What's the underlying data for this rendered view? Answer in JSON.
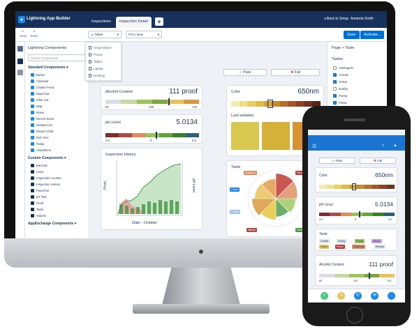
{
  "app": {
    "name": "Lightning App Builder"
  },
  "tabs": [
    {
      "label": "Inspections"
    },
    {
      "label": "Inspection Detail"
    }
  ],
  "header": {
    "back_label": "◂ Back to Setup",
    "user": "Amanda Smith"
  },
  "toolbar": {
    "undo": "Undo",
    "redo": "Redo",
    "device": "Tablet",
    "zoom": "Fit to View",
    "save": "Save",
    "activate": "Activate..."
  },
  "device_menu": {
    "items": [
      "Smart Watch",
      "Phone",
      "Tablet",
      "Laptop",
      "Desktop"
    ]
  },
  "left_panel": {
    "title": "Lightning Components",
    "search_placeholder": "Search Components",
    "standard_heading": "Standard Components",
    "standard_items": [
      "Button",
      "Calendar",
      "Chatter Feed",
      "Data Grid",
      "Filter List",
      "Map",
      "Notes",
      "Recent Items",
      "Related List",
      "Report Chart",
      "Rich Text",
      "Today",
      "Visualforce"
    ],
    "custom_heading": "Custom Components",
    "custom_items": [
      "Barcode",
      "Color",
      "Inspection Counter",
      "Inspection History",
      "Pass/Fail",
      "pH Test",
      "Proof",
      "Taste",
      "Volume"
    ],
    "appexchange_heading": "AppExchange Components"
  },
  "canvas": {
    "pass": "Pass",
    "fail": "Fail",
    "alcohol": {
      "label": "Alcohol Content",
      "value": "111 proof",
      "ticks": [
        "80",
        "100",
        "120"
      ]
    },
    "ph": {
      "label": "pH Level",
      "value": "5.0134",
      "ticks": [
        "4.5",
        "5",
        "5.5"
      ]
    },
    "color": {
      "label": "Color",
      "value": "650nm",
      "samples_label": "Last samples"
    },
    "history": {
      "title": "Inspection History",
      "xlabel": "Date - October",
      "ylabel_left": "Proof",
      "ylabel_right": "pH Level"
    },
    "taste": {
      "title": "Taste",
      "labels": [
        "Sulphury",
        "Floral",
        "Citrus",
        "Woody",
        "Cereal",
        "Fenty",
        "Winey",
        "Peaty"
      ]
    }
  },
  "right_panel": {
    "breadcrumb": "Page > Taste",
    "heading": "Tastes",
    "options": [
      {
        "label": "Astringent",
        "checked": false
      },
      {
        "label": "Cereal",
        "checked": true
      },
      {
        "label": "Citrus",
        "checked": true
      },
      {
        "label": "Earthy",
        "checked": false
      },
      {
        "label": "Feinty",
        "checked": true
      },
      {
        "label": "Floral",
        "checked": true
      }
    ]
  },
  "phone": {
    "pass": "Pass",
    "fail": "Fail",
    "color_label": "Color",
    "color_value": "650nm",
    "ph_label": "pH Level",
    "ph_value": "5.0134",
    "ph_ticks": [
      "4.5",
      "5",
      "5.5"
    ],
    "taste_label": "Taste",
    "taste_chips": [
      "Cereal",
      "Feinty",
      "Peaty",
      "Winey",
      "Citrus",
      "Floral",
      "Sulphury",
      "Woody"
    ],
    "alcohol_label": "Alcohol Content",
    "alcohol_value": "111 proof",
    "alcohol_ticks": [
      "80",
      "100",
      "120"
    ]
  },
  "colors": {
    "brand": "#16325c",
    "accent": "#0070d2",
    "pass": "#4bca81",
    "fail": "#c23934"
  }
}
